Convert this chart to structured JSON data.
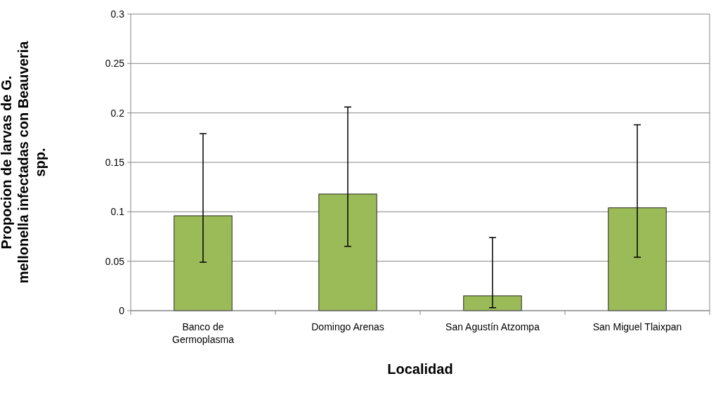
{
  "chart_data": {
    "type": "bar",
    "xlabel": "Localidad",
    "ylabel": "Propocion de larvas de G. mellonella infectadas con Beauveria spp.",
    "categories": [
      "Banco de Germoplasma",
      "Domingo Arenas",
      "San Agustín Atzompa",
      "San Miguel Tlaixpan"
    ],
    "values": [
      0.096,
      0.118,
      0.015,
      0.104
    ],
    "errors": [
      [
        0.049,
        0.179
      ],
      [
        0.065,
        0.206
      ],
      [
        0.003,
        0.074
      ],
      [
        0.054,
        0.188
      ]
    ],
    "color": "#9bbb59",
    "ylim": [
      0,
      0.3
    ],
    "yticks": [
      0,
      0.05,
      0.1,
      0.15,
      0.2,
      0.25,
      0.3
    ],
    "grid": "y"
  }
}
